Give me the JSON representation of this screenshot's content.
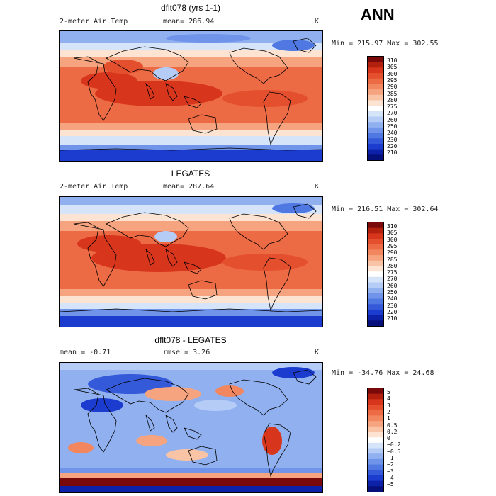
{
  "season_label": "ANN",
  "panels": [
    {
      "title": "dflt078 (yrs 1-1)",
      "left_label": "2-meter Air Temp",
      "stat_label": "mean= 286.94",
      "units": "K",
      "range_label": "Min = 215.97 Max = 302.55",
      "legend_colors": [
        "#7a0a0a",
        "#b3200e",
        "#d8361c",
        "#e44f2d",
        "#ec6a44",
        "#f2875f",
        "#f6a47f",
        "#f9c3a5",
        "#fce3d2",
        "#ffffff",
        "#d6e4fa",
        "#b5ccf6",
        "#90b0f0",
        "#6f94ea",
        "#4f78e3",
        "#3459d9",
        "#1b3cce",
        "#0d20a8",
        "#06107a"
      ],
      "legend_ticks": [
        "310",
        "305",
        "300",
        "295",
        "290",
        "285",
        "280",
        "275",
        "270",
        "260",
        "250",
        "240",
        "230",
        "220",
        "210"
      ],
      "field": "model"
    },
    {
      "title": "LEGATES",
      "left_label": "2-meter Air Temp",
      "stat_label": "mean= 287.64",
      "units": "K",
      "range_label": "Min = 216.51 Max = 302.64",
      "legend_colors": [
        "#7a0a0a",
        "#b3200e",
        "#d8361c",
        "#e44f2d",
        "#ec6a44",
        "#f2875f",
        "#f6a47f",
        "#f9c3a5",
        "#fce3d2",
        "#ffffff",
        "#d6e4fa",
        "#b5ccf6",
        "#90b0f0",
        "#6f94ea",
        "#4f78e3",
        "#3459d9",
        "#1b3cce",
        "#0d20a8",
        "#06107a"
      ],
      "legend_ticks": [
        "310",
        "305",
        "300",
        "295",
        "290",
        "285",
        "280",
        "275",
        "270",
        "260",
        "250",
        "240",
        "230",
        "220",
        "210"
      ],
      "field": "obs"
    },
    {
      "title": "dflt078 - LEGATES",
      "left_label": "mean =   -0.71",
      "stat_label": "rmse =    3.26",
      "units": "K",
      "range_label": "Min = -34.76 Max =  24.68",
      "legend_colors": [
        "#7a0a0a",
        "#b3200e",
        "#d8361c",
        "#e44f2d",
        "#ec6a44",
        "#f2875f",
        "#f6a47f",
        "#f9c3a5",
        "#fce3d2",
        "#ffffff",
        "#d6e4fa",
        "#b5ccf6",
        "#90b0f0",
        "#6f94ea",
        "#4f78e3",
        "#3459d9",
        "#1b3cce",
        "#0d20a8",
        "#06107a"
      ],
      "legend_ticks": [
        "5",
        "4",
        "3",
        "2",
        "1",
        "0.5",
        "0.2",
        "0",
        "−0.2",
        "−0.5",
        "−1",
        "−2",
        "−3",
        "−4",
        "−5"
      ],
      "field": "diff"
    }
  ]
}
